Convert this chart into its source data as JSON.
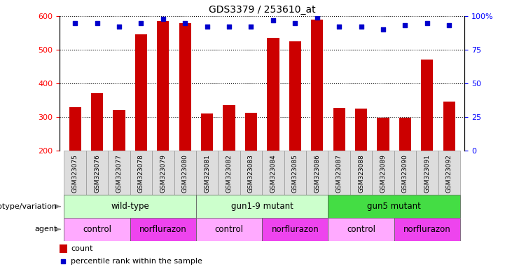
{
  "title": "GDS3379 / 253610_at",
  "samples": [
    "GSM323075",
    "GSM323076",
    "GSM323077",
    "GSM323078",
    "GSM323079",
    "GSM323080",
    "GSM323081",
    "GSM323082",
    "GSM323083",
    "GSM323084",
    "GSM323085",
    "GSM323086",
    "GSM323087",
    "GSM323088",
    "GSM323089",
    "GSM323090",
    "GSM323091",
    "GSM323092"
  ],
  "counts": [
    330,
    370,
    320,
    545,
    585,
    580,
    310,
    335,
    312,
    535,
    525,
    590,
    328,
    325,
    298,
    297,
    470,
    345
  ],
  "percentile_ranks": [
    95,
    95,
    92,
    95,
    98,
    95,
    92,
    92,
    92,
    97,
    95,
    99,
    92,
    92,
    90,
    93,
    95,
    93
  ],
  "ylim_left": [
    200,
    600
  ],
  "ylim_right": [
    0,
    100
  ],
  "yticks_left": [
    200,
    300,
    400,
    500,
    600
  ],
  "yticks_right": [
    0,
    25,
    50,
    75,
    100
  ],
  "bar_color": "#cc0000",
  "dot_color": "#0000cc",
  "genotype_groups": [
    {
      "label": "wild-type",
      "start": 0,
      "end": 5,
      "color": "#ccffcc"
    },
    {
      "label": "gun1-9 mutant",
      "start": 6,
      "end": 11,
      "color": "#ccffcc"
    },
    {
      "label": "gun5 mutant",
      "start": 12,
      "end": 17,
      "color": "#44dd44"
    }
  ],
  "agent_groups": [
    {
      "label": "control",
      "start": 0,
      "end": 2,
      "color": "#ffaaff"
    },
    {
      "label": "norflurazon",
      "start": 3,
      "end": 5,
      "color": "#ee44ee"
    },
    {
      "label": "control",
      "start": 6,
      "end": 8,
      "color": "#ffaaff"
    },
    {
      "label": "norflurazon",
      "start": 9,
      "end": 11,
      "color": "#ee44ee"
    },
    {
      "label": "control",
      "start": 12,
      "end": 14,
      "color": "#ffaaff"
    },
    {
      "label": "norflurazon",
      "start": 15,
      "end": 17,
      "color": "#ee44ee"
    }
  ],
  "genotype_label": "genotype/variation",
  "agent_label": "agent",
  "legend_count_label": "count",
  "legend_pct_label": "percentile rank within the sample",
  "xtick_bg": "#dddddd"
}
